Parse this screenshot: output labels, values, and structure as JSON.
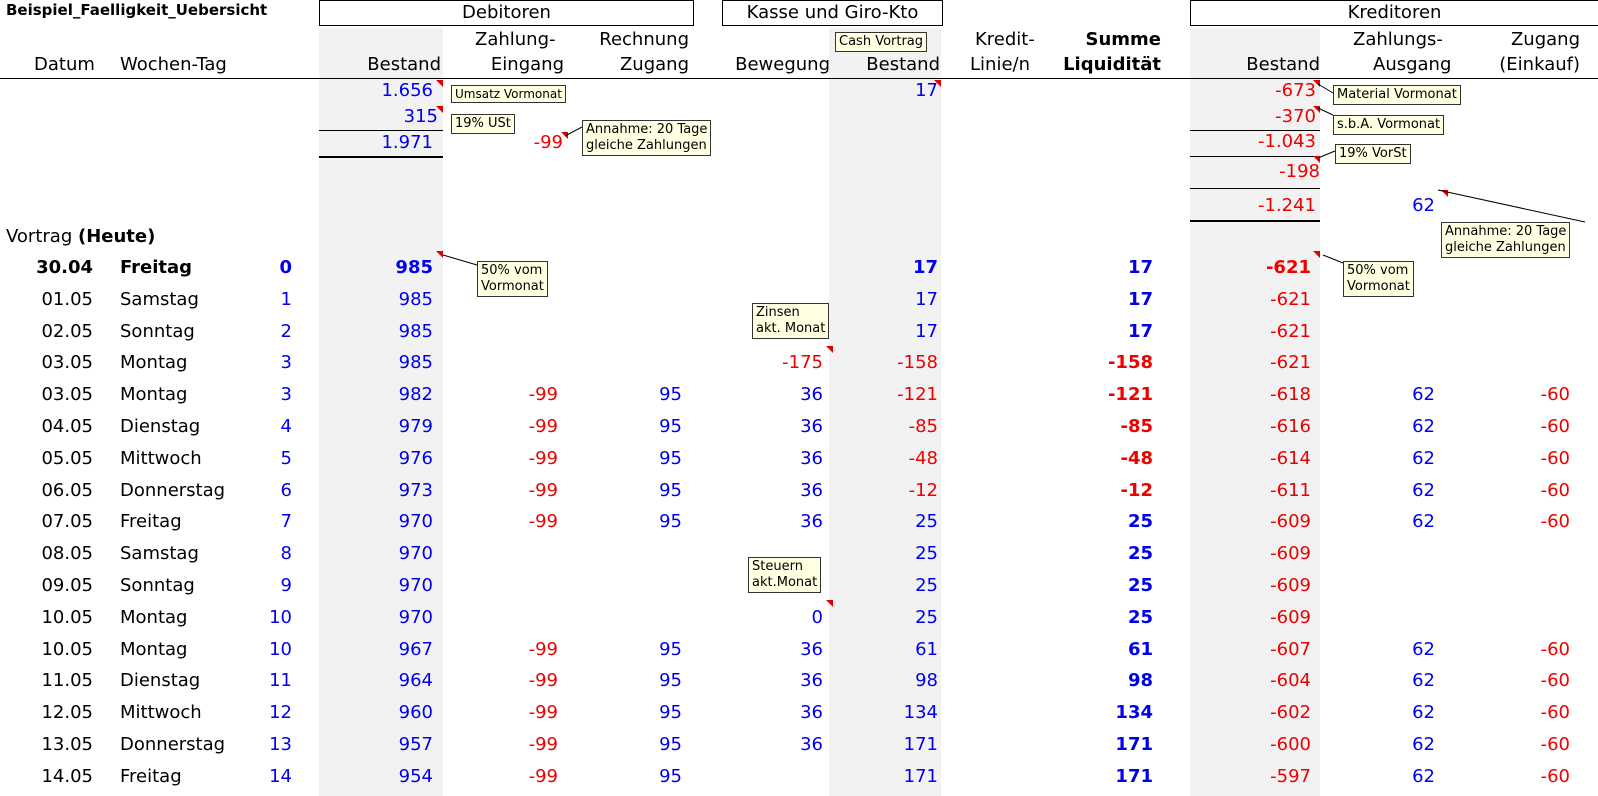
{
  "sheet_title": "Beispiel_Faelligkeit_Uebersicht",
  "groups": {
    "debitoren": "Debitoren",
    "kasse": "Kasse und Giro-Kto",
    "kreditoren": "Kreditoren"
  },
  "headers": {
    "datum": "Datum",
    "wochentag": "Wochen-Tag",
    "deb_bestand": "Bestand",
    "zahlung1": "Zahlung-",
    "zahlung2": "Eingang",
    "rechnung1": "Rechnung",
    "rechnung2": "Zugang",
    "bewegung": "Bewegung",
    "kasse_bestand": "Bestand",
    "kredit1": "Kredit-",
    "kredit2": "Linie/n",
    "summe1": "Summe",
    "summe2": "Liquidität",
    "kred_bestand": "Bestand",
    "zahlungs1": "Zahlungs-",
    "zahlungs2": "Ausgang",
    "zugang1": "Zugang",
    "zugang2": "(Einkauf)"
  },
  "precalc": {
    "deb_1": "1.656",
    "deb_2": "315",
    "deb_3": "1.971",
    "zahlung": "-99",
    "kasse": "17",
    "kred_1": "-673",
    "kred_2": "-370",
    "kred_3": "-1.043",
    "kred_4": "-198",
    "kred_5": "-1.241",
    "zahlungs": "62"
  },
  "notes": {
    "umsatz": "Umsatz Vormonat",
    "ust": "19% USt",
    "annahme_deb": [
      "Annahme: 20 Tage",
      "gleiche Zahlungen"
    ],
    "cash_vortrag": "Cash Vortrag",
    "material": "Material Vormonat",
    "sba": "s.b.A. Vormonat",
    "vorst": "19% VorSt",
    "annahme_kred": [
      "Annahme: 20 Tage",
      "gleiche Zahlungen"
    ],
    "deb_50": [
      "50% vom",
      "Vormonat"
    ],
    "kred_50": [
      "50% vom",
      "Vormonat"
    ],
    "zinsen": [
      "Zinsen",
      "akt. Monat"
    ],
    "steuern": [
      "Steuern",
      "akt.Monat"
    ]
  },
  "vortrag": {
    "label": "Vortrag",
    "label_bold": "(Heute)"
  },
  "rows": [
    {
      "datum": "30.04",
      "tag": "Freitag",
      "n": "0",
      "deb": "985",
      "zahl": "",
      "rech": "",
      "bew": "",
      "kasse": "17",
      "kredit": "",
      "summe": "17",
      "kred": "-621",
      "zaus": "",
      "zug": ""
    },
    {
      "datum": "01.05",
      "tag": "Samstag",
      "n": "1",
      "deb": "985",
      "zahl": "",
      "rech": "",
      "bew": "",
      "kasse": "17",
      "kredit": "",
      "summe": "17",
      "kred": "-621",
      "zaus": "",
      "zug": ""
    },
    {
      "datum": "02.05",
      "tag": "Sonntag",
      "n": "2",
      "deb": "985",
      "zahl": "",
      "rech": "",
      "bew": "",
      "kasse": "17",
      "kredit": "",
      "summe": "17",
      "kred": "-621",
      "zaus": "",
      "zug": ""
    },
    {
      "datum": "03.05",
      "tag": "Montag",
      "n": "3",
      "deb": "985",
      "zahl": "",
      "rech": "",
      "bew": "-175",
      "kasse": "-158",
      "kredit": "",
      "summe": "-158",
      "kred": "-621",
      "zaus": "",
      "zug": ""
    },
    {
      "datum": "03.05",
      "tag": "Montag",
      "n": "3",
      "deb": "982",
      "zahl": "-99",
      "rech": "95",
      "bew": "36",
      "kasse": "-121",
      "kredit": "",
      "summe": "-121",
      "kred": "-618",
      "zaus": "62",
      "zug": "-60"
    },
    {
      "datum": "04.05",
      "tag": "Dienstag",
      "n": "4",
      "deb": "979",
      "zahl": "-99",
      "rech": "95",
      "bew": "36",
      "kasse": "-85",
      "kredit": "",
      "summe": "-85",
      "kred": "-616",
      "zaus": "62",
      "zug": "-60"
    },
    {
      "datum": "05.05",
      "tag": "Mittwoch",
      "n": "5",
      "deb": "976",
      "zahl": "-99",
      "rech": "95",
      "bew": "36",
      "kasse": "-48",
      "kredit": "",
      "summe": "-48",
      "kred": "-614",
      "zaus": "62",
      "zug": "-60"
    },
    {
      "datum": "06.05",
      "tag": "Donnerstag",
      "n": "6",
      "deb": "973",
      "zahl": "-99",
      "rech": "95",
      "bew": "36",
      "kasse": "-12",
      "kredit": "",
      "summe": "-12",
      "kred": "-611",
      "zaus": "62",
      "zug": "-60"
    },
    {
      "datum": "07.05",
      "tag": "Freitag",
      "n": "7",
      "deb": "970",
      "zahl": "-99",
      "rech": "95",
      "bew": "36",
      "kasse": "25",
      "kredit": "",
      "summe": "25",
      "kred": "-609",
      "zaus": "62",
      "zug": "-60"
    },
    {
      "datum": "08.05",
      "tag": "Samstag",
      "n": "8",
      "deb": "970",
      "zahl": "",
      "rech": "",
      "bew": "",
      "kasse": "25",
      "kredit": "",
      "summe": "25",
      "kred": "-609",
      "zaus": "",
      "zug": ""
    },
    {
      "datum": "09.05",
      "tag": "Sonntag",
      "n": "9",
      "deb": "970",
      "zahl": "",
      "rech": "",
      "bew": "",
      "kasse": "25",
      "kredit": "",
      "summe": "25",
      "kred": "-609",
      "zaus": "",
      "zug": ""
    },
    {
      "datum": "10.05",
      "tag": "Montag",
      "n": "10",
      "deb": "970",
      "zahl": "",
      "rech": "",
      "bew": "0",
      "kasse": "25",
      "kredit": "",
      "summe": "25",
      "kred": "-609",
      "zaus": "",
      "zug": ""
    },
    {
      "datum": "10.05",
      "tag": "Montag",
      "n": "10",
      "deb": "967",
      "zahl": "-99",
      "rech": "95",
      "bew": "36",
      "kasse": "61",
      "kredit": "",
      "summe": "61",
      "kred": "-607",
      "zaus": "62",
      "zug": "-60"
    },
    {
      "datum": "11.05",
      "tag": "Dienstag",
      "n": "11",
      "deb": "964",
      "zahl": "-99",
      "rech": "95",
      "bew": "36",
      "kasse": "98",
      "kredit": "",
      "summe": "98",
      "kred": "-604",
      "zaus": "62",
      "zug": "-60"
    },
    {
      "datum": "12.05",
      "tag": "Mittwoch",
      "n": "12",
      "deb": "960",
      "zahl": "-99",
      "rech": "95",
      "bew": "36",
      "kasse": "134",
      "kredit": "",
      "summe": "134",
      "kred": "-602",
      "zaus": "62",
      "zug": "-60"
    },
    {
      "datum": "13.05",
      "tag": "Donnerstag",
      "n": "13",
      "deb": "957",
      "zahl": "-99",
      "rech": "95",
      "bew": "36",
      "kasse": "171",
      "kredit": "",
      "summe": "171",
      "kred": "-600",
      "zaus": "62",
      "zug": "-60"
    },
    {
      "datum": "14.05",
      "tag": "Freitag",
      "n": "14",
      "deb": "954",
      "zahl": "-99",
      "rech": "95",
      "bew": "",
      "kasse": "171",
      "kredit": "",
      "summe": "171",
      "kred": "-597",
      "zaus": "62",
      "zug": "-60"
    }
  ]
}
